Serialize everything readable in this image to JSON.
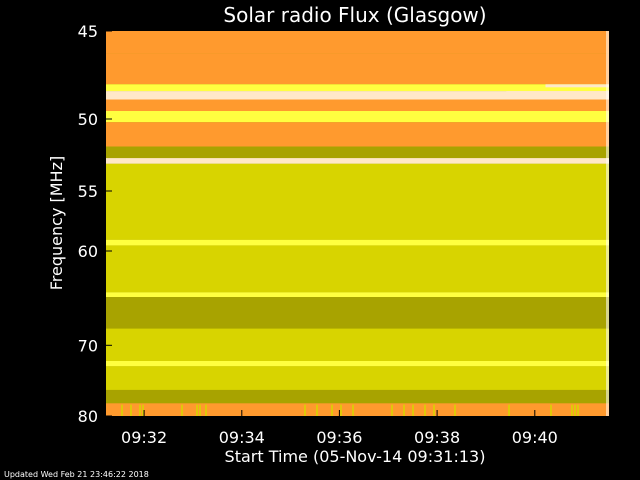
{
  "chart_data": {
    "type": "heatmap",
    "title": "Solar radio Flux (Glasgow)",
    "xlabel": "Start Time (05-Nov-14 09:31:13)",
    "ylabel": "Frequency [MHz]",
    "x_ticks": [
      "09:32",
      "09:34",
      "09:36",
      "09:38",
      "09:40"
    ],
    "x_tick_minutes": [
      0.78,
      2.78,
      4.78,
      6.78,
      8.78
    ],
    "xlim_minutes_after_start": [
      0,
      10.3
    ],
    "y_ticks": [
      "45",
      "50",
      "55",
      "60",
      "70",
      "80"
    ],
    "y_tick_values": [
      45,
      50,
      55,
      60,
      70,
      80
    ],
    "ylim": [
      45,
      80
    ],
    "y_scale": "reciprocal",
    "y_inverted": true,
    "colors": {
      "low": "#a8a300",
      "mid": "#d8d400",
      "high": "#ffff40",
      "hot": "#ff9a2e",
      "hottest": "#ffe8c8"
    },
    "bands_mhz": [
      {
        "from": 45.0,
        "to": 46.2,
        "level": "hot"
      },
      {
        "from": 46.2,
        "to": 47.9,
        "level": "hot"
      },
      {
        "from": 47.9,
        "to": 48.3,
        "level": "high"
      },
      {
        "from": 48.3,
        "to": 48.8,
        "level": "hottest"
      },
      {
        "from": 48.8,
        "to": 49.5,
        "level": "hot"
      },
      {
        "from": 49.5,
        "to": 50.2,
        "level": "high"
      },
      {
        "from": 50.2,
        "to": 51.8,
        "level": "hot"
      },
      {
        "from": 51.8,
        "to": 52.6,
        "level": "low"
      },
      {
        "from": 52.6,
        "to": 53.0,
        "level": "hottest"
      },
      {
        "from": 53.0,
        "to": 59.0,
        "level": "mid"
      },
      {
        "from": 59.0,
        "to": 59.5,
        "level": "high"
      },
      {
        "from": 59.5,
        "to": 64.0,
        "level": "mid"
      },
      {
        "from": 64.0,
        "to": 64.5,
        "level": "high"
      },
      {
        "from": 64.5,
        "to": 68.0,
        "level": "low"
      },
      {
        "from": 68.0,
        "to": 72.0,
        "level": "mid"
      },
      {
        "from": 72.0,
        "to": 72.7,
        "level": "high"
      },
      {
        "from": 72.7,
        "to": 76.0,
        "level": "mid"
      },
      {
        "from": 76.0,
        "to": 78.0,
        "level": "low"
      },
      {
        "from": 78.0,
        "to": 80.0,
        "level": "hot"
      }
    ]
  },
  "footer": {
    "updated": "Updated Wed Feb 21 23:46:22 2018"
  }
}
